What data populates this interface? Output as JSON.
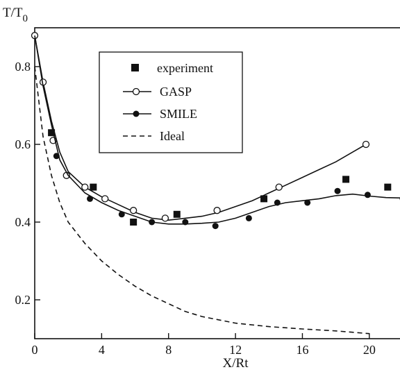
{
  "chart_data": {
    "type": "line",
    "ylabel": "T/T",
    "ylabel_subscript": "0",
    "xlabel": "X/Rt",
    "xlim": [
      0,
      22
    ],
    "ylim": [
      0.1,
      0.9
    ],
    "x_ticks": [
      0,
      4,
      8,
      12,
      16,
      20
    ],
    "x_tick_labels": [
      "0",
      "4",
      "8",
      "12",
      "16",
      "20"
    ],
    "y_ticks": [
      0.2,
      0.4,
      0.6,
      0.8
    ],
    "y_tick_labels": [
      "0.2",
      "0.4",
      "0.6",
      "0.8"
    ],
    "legend": {
      "position": "upper-left",
      "entries": [
        "experiment",
        "GASP",
        "SMILE",
        "Ideal"
      ]
    },
    "series": [
      {
        "name": "experiment",
        "style": "filled-square markers",
        "x": [
          1.0,
          3.5,
          5.9,
          8.5,
          13.7,
          18.6,
          21.1
        ],
        "y": [
          0.63,
          0.49,
          0.4,
          0.42,
          0.46,
          0.51,
          0.49
        ]
      },
      {
        "name": "GASP",
        "style": "solid line with open circles",
        "x": [
          0.0,
          0.5,
          1.1,
          1.9,
          3.0,
          4.2,
          5.9,
          7.8,
          10.9,
          14.6,
          19.8
        ],
        "y": [
          0.88,
          0.76,
          0.61,
          0.52,
          0.49,
          0.46,
          0.43,
          0.41,
          0.43,
          0.49,
          0.6
        ],
        "line_x": [
          0.0,
          0.5,
          1.0,
          1.5,
          2.0,
          3.0,
          4.0,
          5.0,
          6.0,
          7.0,
          8.0,
          9.0,
          10.0,
          11.0,
          12.0,
          13.0,
          14.0,
          15.0,
          16.0,
          17.0,
          18.0,
          19.0,
          19.8
        ],
        "line_y": [
          0.88,
          0.76,
          0.66,
          0.58,
          0.53,
          0.49,
          0.465,
          0.445,
          0.425,
          0.41,
          0.405,
          0.41,
          0.415,
          0.425,
          0.44,
          0.455,
          0.475,
          0.495,
          0.515,
          0.535,
          0.555,
          0.58,
          0.6
        ]
      },
      {
        "name": "SMILE",
        "style": "solid line with filled circles",
        "x": [
          1.3,
          3.3,
          5.2,
          7.0,
          9.0,
          10.8,
          12.8,
          14.5,
          16.3,
          18.1,
          19.9,
          22.0
        ],
        "y": [
          0.57,
          0.46,
          0.42,
          0.4,
          0.4,
          0.39,
          0.41,
          0.45,
          0.45,
          0.48,
          0.47,
          0.46
        ],
        "line_x": [
          0.0,
          0.5,
          1.0,
          1.5,
          2.0,
          3.0,
          4.0,
          5.0,
          6.0,
          7.0,
          8.0,
          9.0,
          10.0,
          11.0,
          12.0,
          13.0,
          14.0,
          15.0,
          16.0,
          17.0,
          18.0,
          19.0,
          20.0,
          21.0,
          22.0
        ],
        "line_y": [
          0.88,
          0.75,
          0.65,
          0.56,
          0.52,
          0.475,
          0.45,
          0.43,
          0.415,
          0.4,
          0.395,
          0.395,
          0.397,
          0.4,
          0.41,
          0.425,
          0.44,
          0.45,
          0.455,
          0.46,
          0.468,
          0.472,
          0.467,
          0.463,
          0.462
        ]
      },
      {
        "name": "Ideal",
        "style": "dashed line",
        "x": [
          0.0,
          0.5,
          1.0,
          1.5,
          2.0,
          3.0,
          4.0,
          5.0,
          6.0,
          7.0,
          8.0,
          9.0,
          10.0,
          12.0,
          14.0,
          16.0,
          18.0,
          20.0
        ],
        "y": [
          0.8,
          0.62,
          0.52,
          0.45,
          0.4,
          0.345,
          0.3,
          0.265,
          0.235,
          0.21,
          0.19,
          0.17,
          0.157,
          0.14,
          0.131,
          0.125,
          0.12,
          0.113
        ]
      }
    ]
  }
}
